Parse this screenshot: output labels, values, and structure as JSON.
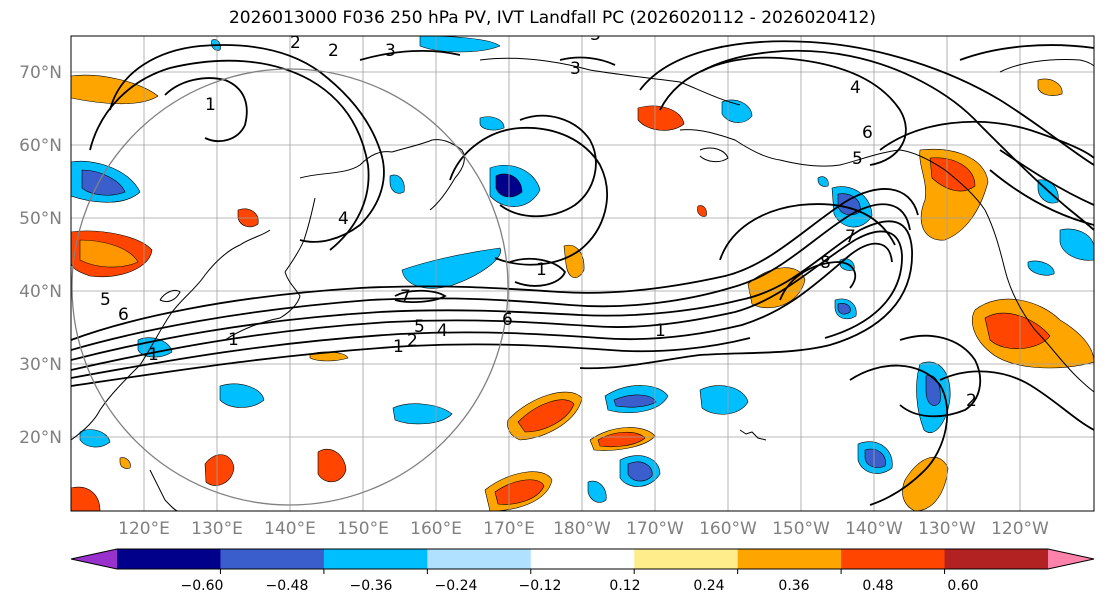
{
  "title": "2026013000 F036 250 hPa PV, IVT Landfall PC (2026020112 - 2026020412)",
  "lat_labels": [
    "70°N",
    "60°N",
    "50°N",
    "40°N",
    "30°N",
    "20°N"
  ],
  "lon_labels": [
    "120°E",
    "130°E",
    "140°E",
    "150°E",
    "160°E",
    "170°E",
    "180°W",
    "170°W",
    "160°W",
    "150°W",
    "140°W",
    "130°W",
    "120°W"
  ],
  "colorbar": {
    "colors": [
      "#9932cc",
      "#00008b",
      "#3a5fcd",
      "#00bfff",
      "#b0e2ff",
      "#ffffff",
      "#ffec8b",
      "#ffa500",
      "#ff4500",
      "#b22222",
      "#ff82ab"
    ],
    "ticks": [
      "−0.60",
      "−0.48",
      "−0.36",
      "−0.24",
      "−0.12",
      "0.12",
      "0.24",
      "0.36",
      "0.48",
      "0.60"
    ]
  },
  "contour_labels": [
    "1",
    "2",
    "3",
    "3",
    "4",
    "5",
    "6",
    "1",
    "4",
    "5",
    "6",
    "7",
    "7",
    "8",
    "1",
    "1",
    "2",
    "5",
    "4",
    "6",
    "1",
    "2",
    "1",
    "3",
    "2"
  ]
}
